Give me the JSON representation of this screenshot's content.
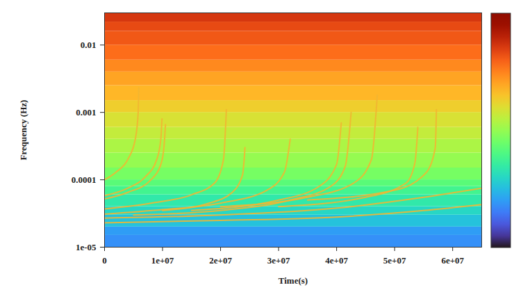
{
  "chart_data": {
    "type": "heatmap",
    "x_label": "Time(s)",
    "y_label": "Frequency (Hz)",
    "log": "y",
    "xlim": [
      0,
      65000000
    ],
    "ylim": [
      1e-05,
      0.03
    ],
    "xticks": [
      0,
      {
        "value": 10000000,
        "label": "1e+07"
      },
      {
        "value": 20000000,
        "label": "2e+07"
      },
      {
        "value": 30000000,
        "label": "3e+07"
      },
      {
        "value": 40000000,
        "label": "4e+07"
      },
      {
        "value": 50000000,
        "label": "5e+07"
      },
      {
        "value": 60000000,
        "label": "6e+07"
      }
    ],
    "yticks": [
      {
        "value": 1e-05,
        "label": "1e-05"
      },
      0.0001,
      0.001,
      0.01
    ],
    "band_edges": [
      1e-05,
      1.5e-05,
      2e-05,
      3e-05,
      4e-05,
      6e-05,
      8e-05,
      0.0001,
      0.00015,
      0.00025,
      0.0004,
      0.0006,
      0.001,
      0.0015,
      0.0025,
      0.004,
      0.006,
      0.01,
      0.016,
      0.022,
      0.03
    ],
    "band_values": [
      1.8,
      2.0,
      2.6,
      3.0,
      3.4,
      3.8,
      4.2,
      4.6,
      5.0,
      5.3,
      5.6,
      5.9,
      6.3,
      6.7,
      7.0,
      7.4,
      7.8,
      8.1,
      8.3,
      8.6
    ],
    "zlim": [
      0,
      10
    ],
    "color": "#f2b632",
    "series": [
      {
        "x": [
          0,
          2000000,
          4000000,
          5300000,
          5800000,
          5900000
        ],
        "values": [
          0.0001,
          0.00013,
          0.0002,
          0.0004,
          0.001,
          0.0023
        ]
      },
      {
        "x": [
          0,
          4000000,
          8000000,
          9800000,
          10300000,
          10500000
        ],
        "values": [
          5.2e-05,
          6.5e-05,
          0.0001,
          0.00018,
          0.00035,
          0.00066
        ]
      },
      {
        "x": [
          0,
          4000000,
          7000000,
          9000000,
          9700000,
          9900000
        ],
        "values": [
          5.8e-05,
          7.5e-05,
          0.00011,
          0.0002,
          0.0004,
          0.0008
        ]
      },
      {
        "x": [
          0,
          8000000,
          15000000,
          19000000,
          20500000,
          21000000
        ],
        "values": [
          3.7e-05,
          4.5e-05,
          6e-05,
          9e-05,
          0.0002,
          0.0011
        ]
      },
      {
        "x": [
          10000000,
          18000000,
          22000000,
          23800000,
          24200000
        ],
        "values": [
          3.5e-05,
          4.5e-05,
          6.5e-05,
          0.00012,
          0.0003
        ]
      },
      {
        "x": [
          0,
          10000000,
          20000000,
          28000000,
          31000000,
          32000000
        ],
        "values": [
          3.1e-05,
          3.6e-05,
          4.5e-05,
          7e-05,
          0.00013,
          0.0004
        ]
      },
      {
        "x": [
          5000000,
          20000000,
          32000000,
          39000000,
          41500000,
          42500000
        ],
        "values": [
          3e-05,
          3.5e-05,
          5e-05,
          8e-05,
          0.00016,
          0.001
        ]
      },
      {
        "x": [
          15000000,
          30000000,
          37000000,
          40000000,
          40800000
        ],
        "values": [
          3.5e-05,
          5e-05,
          8e-05,
          0.00017,
          0.0007
        ]
      },
      {
        "x": [
          20000000,
          35000000,
          43000000,
          46000000,
          47000000
        ],
        "values": [
          4e-05,
          5.5e-05,
          9e-05,
          0.0002,
          0.0018
        ]
      },
      {
        "x": [
          30000000,
          45000000,
          52000000,
          53500000,
          54000000
        ],
        "values": [
          4e-05,
          5.5e-05,
          9e-05,
          0.00018,
          0.0006
        ]
      },
      {
        "x": [
          35000000,
          50000000,
          55500000,
          57000000,
          57200000
        ],
        "values": [
          5e-05,
          7e-05,
          0.00013,
          0.0003,
          0.0011
        ]
      },
      {
        "x": [
          0,
          20000000,
          40000000,
          55000000,
          65000000
        ],
        "values": [
          2.7e-05,
          3e-05,
          3.8e-05,
          5.5e-05,
          7.5e-05
        ]
      },
      {
        "x": [
          0,
          20000000,
          40000000,
          55000000,
          65000000
        ],
        "values": [
          2.3e-05,
          2.5e-05,
          2.8e-05,
          3.5e-05,
          4.3e-05
        ]
      }
    ]
  }
}
